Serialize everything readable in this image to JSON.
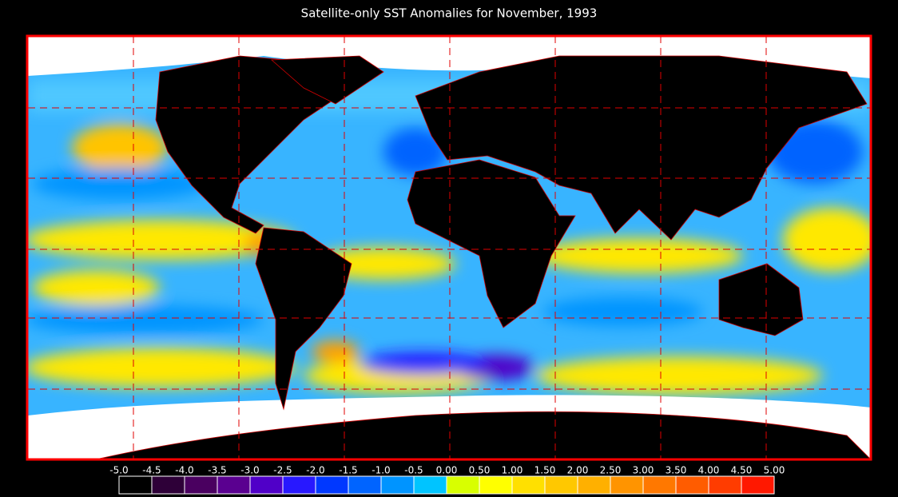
{
  "title": "Satellite-only SST Anomalies for November, 1993",
  "colorbar": {
    "ticks": [
      {
        "value": -5,
        "label": "-5.0"
      },
      {
        "value": -4.5,
        "label": "-4.5"
      },
      {
        "value": -4,
        "label": "-4.0"
      },
      {
        "value": -3.5,
        "label": "-3.5"
      },
      {
        "value": -3,
        "label": "-3.0"
      },
      {
        "value": -2.5,
        "label": "-2.5"
      },
      {
        "value": -2,
        "label": "-2.0"
      },
      {
        "value": -1.5,
        "label": "-1.5"
      },
      {
        "value": -1,
        "label": "-1.0"
      },
      {
        "value": -0.5,
        "label": "-0.5"
      },
      {
        "value": 0,
        "label": "0.00"
      },
      {
        "value": 0.5,
        "label": "0.50"
      },
      {
        "value": 1,
        "label": "1.00"
      },
      {
        "value": 1.5,
        "label": "1.50"
      },
      {
        "value": 2,
        "label": "2.00"
      },
      {
        "value": 2.5,
        "label": "2.50"
      },
      {
        "value": 3,
        "label": "3.00"
      },
      {
        "value": 3.5,
        "label": "3.50"
      },
      {
        "value": 4,
        "label": "4.00"
      },
      {
        "value": 4.5,
        "label": "4.50"
      },
      {
        "value": 5,
        "label": "5.00"
      }
    ],
    "colors": [
      "#000000",
      "#2e0038",
      "#4a0060",
      "#5a0090",
      "#5000c8",
      "#2818ff",
      "#0038ff",
      "#0064ff",
      "#0094ff",
      "#00c4ff",
      "#d8ff00",
      "#ffff00",
      "#ffe000",
      "#ffc800",
      "#ffb000",
      "#ff9400",
      "#ff7800",
      "#ff5c00",
      "#ff3c00",
      "#ff1800"
    ]
  }
}
